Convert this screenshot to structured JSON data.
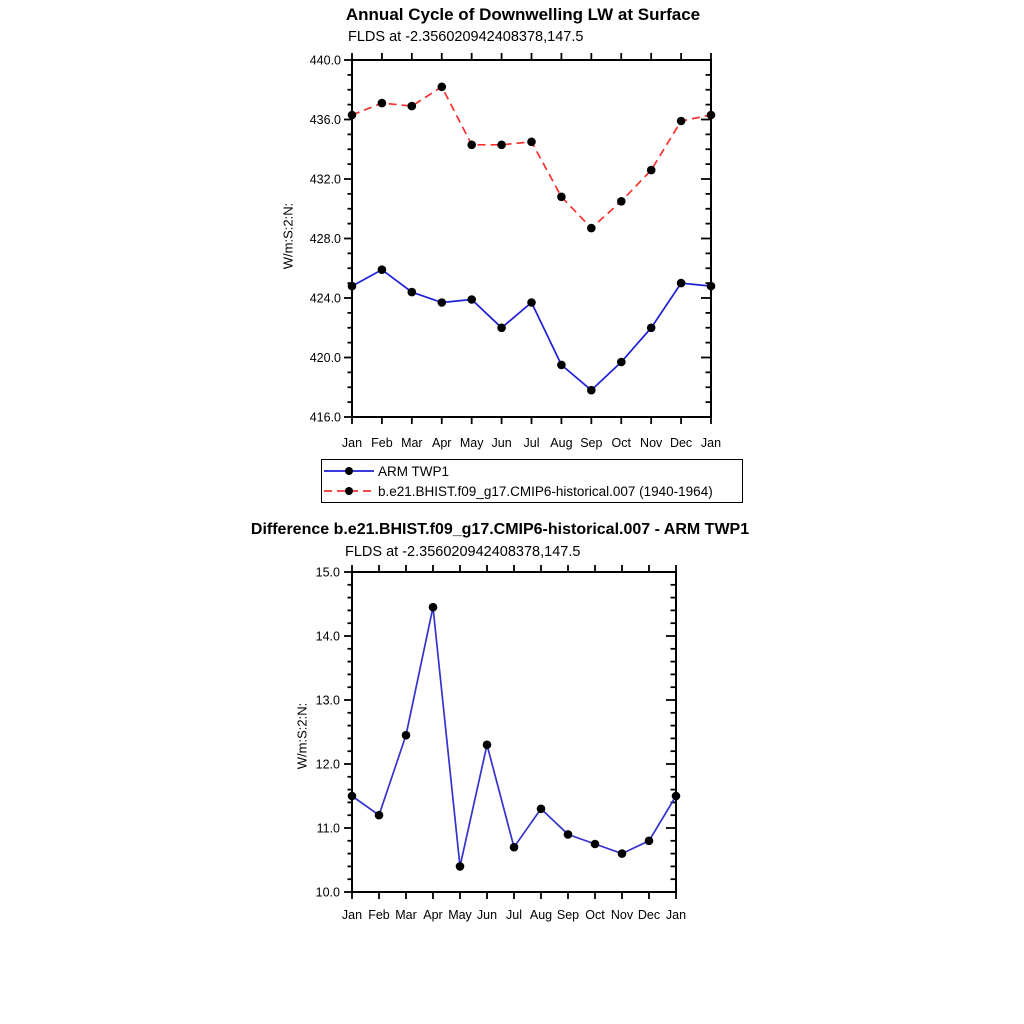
{
  "figure": {
    "background": "#ffffff",
    "axis_color": "#000000",
    "marker_color": "#000000"
  },
  "chart_data": [
    {
      "type": "line",
      "title": "Annual Cycle of Downwelling LW at Surface",
      "subtitle": "FLDS at -2.356020942408378,147.5",
      "ylabel": "W/m:S:2:N:",
      "xlabel": "",
      "categories": [
        "Jan",
        "Feb",
        "Mar",
        "Apr",
        "May",
        "Jun",
        "Jul",
        "Aug",
        "Sep",
        "Oct",
        "Nov",
        "Dec",
        "Jan"
      ],
      "ylim": [
        416.0,
        440.0
      ],
      "ytick_step": 4.0,
      "yminor_step": 1.0,
      "ytick_labels": [
        "440.0",
        "436.0",
        "432.0",
        "428.0",
        "424.0",
        "420.0",
        "416.0"
      ],
      "grid": false,
      "legend_position": "below-left",
      "series": [
        {
          "name": "ARM TWP1",
          "line_style": "solid",
          "line_color": "#1f1fd6",
          "marker": "filled-circle",
          "marker_color": "#000000",
          "values": [
            424.8,
            425.9,
            424.4,
            423.7,
            423.9,
            422.0,
            423.7,
            419.5,
            417.8,
            419.7,
            422.0,
            425.0,
            424.8
          ]
        },
        {
          "name": "b.e21.BHIST.f09_g17.CMIP6-historical.007 (1940-1964)",
          "line_style": "dashed",
          "line_color": "#f83030",
          "marker": "filled-circle",
          "marker_color": "#000000",
          "values": [
            436.3,
            437.1,
            436.9,
            438.2,
            434.3,
            434.3,
            434.5,
            430.8,
            428.7,
            430.5,
            432.6,
            435.9,
            436.3
          ]
        }
      ]
    },
    {
      "type": "line",
      "title": "Difference b.e21.BHIST.f09_g17.CMIP6-historical.007 - ARM TWP1",
      "subtitle": "FLDS at -2.356020942408378,147.5",
      "ylabel": "W/m:S:2:N:",
      "xlabel": "",
      "categories": [
        "Jan",
        "Feb",
        "Mar",
        "Apr",
        "May",
        "Jun",
        "Jul",
        "Aug",
        "Sep",
        "Oct",
        "Nov",
        "Dec",
        "Jan"
      ],
      "ylim": [
        10.0,
        15.0
      ],
      "ytick_step": 1.0,
      "yminor_step": 0.2,
      "ytick_labels": [
        "15.0",
        "14.0",
        "13.0",
        "12.0",
        "11.0",
        "10.0"
      ],
      "grid": false,
      "legend_position": "none",
      "series": [
        {
          "line_style": "solid",
          "line_color": "#3333cc",
          "marker": "filled-circle",
          "marker_color": "#000000",
          "values": [
            11.5,
            11.2,
            12.45,
            14.45,
            10.4,
            12.3,
            10.7,
            11.3,
            10.9,
            10.75,
            10.6,
            10.8,
            11.5
          ]
        }
      ]
    }
  ]
}
